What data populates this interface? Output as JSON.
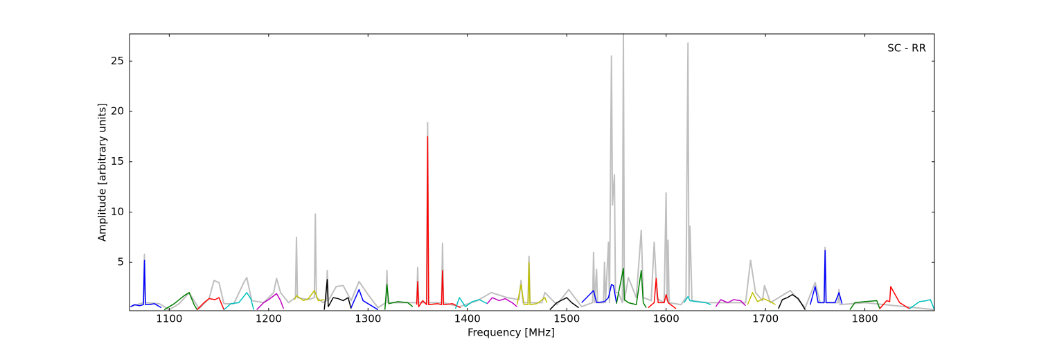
{
  "chart_data": {
    "type": "line",
    "xlabel": "Frequency [MHz]",
    "ylabel": "Amplitude [arbitrary units]",
    "annotation": "SC - RR",
    "xlim": [
      1060,
      1870
    ],
    "ylim": [
      0.2,
      27.7
    ],
    "xticks": [
      1100,
      1200,
      1300,
      1400,
      1500,
      1600,
      1700,
      1800
    ],
    "yticks": [
      5,
      10,
      15,
      20,
      25
    ],
    "series": [
      {
        "color": "#bfbfbf",
        "x": [
          1061,
          1074,
          1075,
          1076,
          1090,
          1100,
          1110,
          1120,
          1130,
          1140,
          1145,
          1150,
          1155,
          1165,
          1175,
          1178,
          1183,
          1195,
          1205,
          1208,
          1212,
          1220,
          1227,
          1228,
          1229,
          1240,
          1246,
          1247,
          1248,
          1255,
          1258,
          1259,
          1260,
          1268,
          1275,
          1283,
          1291,
          1300,
          1310,
          1318,
          1319,
          1320,
          1340,
          1349,
          1350,
          1351,
          1359,
          1360,
          1361,
          1374,
          1375,
          1376,
          1392,
          1410,
          1424,
          1440,
          1452,
          1454,
          1456,
          1461,
          1462,
          1463,
          1475,
          1478,
          1490,
          1502,
          1515,
          1526,
          1527,
          1528,
          1530,
          1531,
          1537,
          1538,
          1539,
          1542,
          1543,
          1545,
          1546,
          1547,
          1548,
          1549,
          1552,
          1556,
          1557,
          1558,
          1562,
          1570,
          1575,
          1577,
          1585,
          1588,
          1591,
          1598,
          1600,
          1601,
          1602,
          1603,
          1615,
          1620,
          1622,
          1623,
          1624,
          1626,
          1640,
          1680,
          1685,
          1690,
          1697,
          1699,
          1705,
          1725,
          1740,
          1750,
          1755,
          1759,
          1760,
          1761,
          1773,
          1774,
          1775,
          1800,
          1870
        ],
        "values": [
          0.6,
          1.0,
          5.8,
          1.0,
          0.9,
          0.3,
          0.9,
          2.0,
          0.4,
          1.4,
          3.2,
          3.0,
          0.9,
          0.9,
          3.0,
          3.5,
          1.2,
          1.0,
          2.0,
          3.4,
          2.0,
          1.0,
          1.5,
          7.5,
          1.5,
          1.3,
          1.5,
          9.8,
          1.5,
          1.0,
          1.2,
          4.2,
          1.2,
          2.6,
          2.7,
          1.2,
          3.1,
          1.8,
          0.5,
          1.0,
          4.2,
          1.0,
          1.0,
          1.0,
          4.5,
          1.0,
          1.0,
          18.9,
          1.0,
          1.0,
          6.9,
          1.0,
          0.6,
          1.2,
          2.0,
          1.5,
          1.3,
          3.2,
          1.0,
          1.0,
          5.6,
          1.0,
          1.0,
          2.0,
          0.8,
          2.3,
          0.6,
          1.0,
          6.0,
          1.0,
          4.3,
          1.0,
          1.0,
          5.0,
          1.0,
          7.0,
          1.0,
          25.5,
          10.7,
          12.3,
          13.7,
          2.0,
          2.0,
          1.0,
          27.7,
          1.2,
          3.5,
          1.5,
          8.2,
          1.5,
          1.2,
          7.0,
          1.4,
          1.0,
          11.9,
          1.2,
          7.2,
          1.0,
          0.8,
          1.5,
          26.8,
          1.5,
          8.6,
          1.2,
          1.0,
          1.0,
          5.2,
          2.0,
          1.2,
          2.7,
          1.0,
          2.2,
          0.5,
          3.0,
          1.0,
          1.0,
          6.5,
          1.0,
          1.0,
          2.3,
          0.8,
          1.0,
          0.3
        ]
      },
      {
        "color": "#0000ff",
        "x": [
          1061,
          1065,
          1070,
          1074,
          1075,
          1076,
          1080,
          1085,
          1092
        ],
        "values": [
          0.6,
          0.8,
          0.7,
          0.8,
          5.2,
          0.8,
          0.8,
          0.9,
          0.5
        ]
      },
      {
        "color": "#007f00",
        "x": [
          1095,
          1105,
          1115,
          1120,
          1125,
          1128
        ],
        "values": [
          0.3,
          0.9,
          1.7,
          2.0,
          0.8,
          0.3
        ]
      },
      {
        "color": "#ff0000",
        "x": [
          1128,
          1135,
          1140,
          1146,
          1150,
          1155
        ],
        "values": [
          0.3,
          1.0,
          1.4,
          1.3,
          1.5,
          0.3
        ]
      },
      {
        "color": "#00bfbf",
        "x": [
          1155,
          1162,
          1170,
          1178,
          1182,
          1185
        ],
        "values": [
          0.3,
          0.9,
          1.0,
          2.0,
          1.4,
          0.3
        ]
      },
      {
        "color": "#bf00bf",
        "x": [
          1188,
          1195,
          1200,
          1208,
          1212,
          1215
        ],
        "values": [
          0.3,
          1.0,
          1.3,
          1.9,
          1.2,
          0.4
        ]
      },
      {
        "color": "#bfbf00",
        "x": [
          1226,
          1228,
          1235,
          1240,
          1246,
          1250,
          1256
        ],
        "values": [
          1.3,
          1.7,
          1.2,
          1.4,
          2.2,
          1.2,
          1.3
        ]
      },
      {
        "color": "#000000",
        "x": [
          1256,
          1259,
          1260,
          1265,
          1270,
          1275,
          1280,
          1283
        ],
        "values": [
          0.3,
          3.3,
          0.6,
          1.5,
          1.4,
          1.2,
          1.5,
          0.4
        ]
      },
      {
        "color": "#0000ff",
        "x": [
          1283,
          1291,
          1295,
          1300,
          1310
        ],
        "values": [
          0.5,
          2.3,
          1.2,
          0.9,
          0.3
        ]
      },
      {
        "color": "#007f00",
        "x": [
          1317,
          1319,
          1321,
          1330,
          1340,
          1345
        ],
        "values": [
          0.3,
          2.8,
          0.9,
          1.1,
          1.0,
          0.6
        ]
      },
      {
        "color": "#ff0000",
        "x": [
          1349,
          1350,
          1351,
          1355,
          1359,
          1360,
          1361,
          1370,
          1374,
          1375,
          1376,
          1385,
          1393
        ],
        "values": [
          0.8,
          3.1,
          0.6,
          1.2,
          0.8,
          17.5,
          0.8,
          0.9,
          0.8,
          4.2,
          0.8,
          0.9,
          0.5
        ]
      },
      {
        "color": "#00bfbf",
        "x": [
          1388,
          1392,
          1398,
          1405,
          1412,
          1420
        ],
        "values": [
          0.4,
          1.5,
          0.6,
          1.1,
          1.3,
          0.9
        ]
      },
      {
        "color": "#bf00bf",
        "x": [
          1420,
          1425,
          1432,
          1438,
          1445,
          1450
        ],
        "values": [
          0.9,
          1.5,
          1.2,
          1.4,
          1.0,
          0.6
        ]
      },
      {
        "color": "#bfbf00",
        "x": [
          1450,
          1454,
          1457,
          1461,
          1462,
          1463,
          1470,
          1478,
          1480
        ],
        "values": [
          0.8,
          2.8,
          0.8,
          0.8,
          5.0,
          0.8,
          0.9,
          1.5,
          1.0
        ]
      },
      {
        "color": "#000000",
        "x": [
          1483,
          1490,
          1500,
          1505,
          1512
        ],
        "values": [
          0.3,
          1.0,
          1.5,
          1.0,
          0.5
        ]
      },
      {
        "color": "#0000ff",
        "x": [
          1515,
          1527,
          1530,
          1538,
          1542,
          1545,
          1547,
          1550
        ],
        "values": [
          1.0,
          2.2,
          1.0,
          1.1,
          1.5,
          2.8,
          2.7,
          1.0
        ]
      },
      {
        "color": "#007f00",
        "x": [
          1550,
          1557,
          1558,
          1562,
          1570,
          1575,
          1577,
          1580
        ],
        "values": [
          0.9,
          4.4,
          1.3,
          1.0,
          0.8,
          4.2,
          1.0,
          0.5
        ]
      },
      {
        "color": "#ff0000",
        "x": [
          1582,
          1588,
          1590,
          1592,
          1598,
          1600,
          1602,
          1610
        ],
        "values": [
          0.5,
          1.0,
          3.4,
          1.0,
          1.0,
          1.8,
          1.0,
          0.4
        ]
      },
      {
        "color": "#00bfbf",
        "x": [
          1618,
          1622,
          1624,
          1630,
          1640,
          1645
        ],
        "values": [
          1.0,
          1.6,
          1.2,
          1.1,
          1.0,
          0.8
        ]
      },
      {
        "color": "#bf00bf",
        "x": [
          1650,
          1655,
          1662,
          1668,
          1675,
          1680
        ],
        "values": [
          0.6,
          1.3,
          1.0,
          1.3,
          1.2,
          0.7
        ]
      },
      {
        "color": "#bfbf00",
        "x": [
          1682,
          1687,
          1692,
          1698,
          1705,
          1710
        ],
        "values": [
          0.8,
          2.0,
          1.1,
          1.4,
          1.1,
          0.8
        ]
      },
      {
        "color": "#000000",
        "x": [
          1713,
          1717,
          1722,
          1727,
          1733,
          1740
        ],
        "values": [
          0.4,
          1.3,
          1.5,
          1.8,
          1.4,
          0.3
        ]
      },
      {
        "color": "#0000ff",
        "x": [
          1745,
          1750,
          1753,
          1759,
          1760,
          1761,
          1770,
          1774,
          1777
        ],
        "values": [
          0.8,
          2.6,
          1.0,
          1.0,
          6.2,
          1.0,
          1.0,
          2.0,
          0.9
        ]
      },
      {
        "color": "#007f00",
        "x": [
          1785,
          1790,
          1800,
          1812,
          1815
        ],
        "values": [
          0.3,
          1.0,
          1.1,
          1.2,
          0.4
        ]
      },
      {
        "color": "#ff0000",
        "x": [
          1815,
          1822,
          1825,
          1826,
          1835,
          1845
        ],
        "values": [
          0.4,
          1.2,
          1.1,
          2.6,
          1.0,
          0.4
        ]
      },
      {
        "color": "#00bfbf",
        "x": [
          1845,
          1855,
          1862,
          1866,
          1870
        ],
        "values": [
          0.4,
          1.1,
          1.2,
          1.3,
          0.3
        ]
      }
    ]
  }
}
